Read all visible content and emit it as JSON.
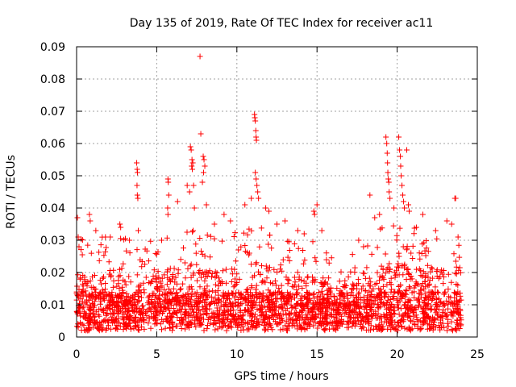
{
  "chart_data": {
    "type": "scatter",
    "title": "Day 135 of 2019, Rate Of TEC Index for receiver ac11",
    "xlabel": "GPS time / hours",
    "ylabel": "ROTI / TECUs",
    "xlim": [
      0,
      25
    ],
    "ylim": [
      0,
      0.09
    ],
    "xticks": [
      0,
      5,
      10,
      15,
      20,
      25
    ],
    "yticks": [
      0,
      0.01,
      0.02,
      0.03,
      0.04,
      0.05,
      0.06,
      0.07,
      0.08,
      0.09
    ],
    "xtick_labels": [
      "0",
      "5",
      "10",
      "15",
      "20",
      "25"
    ],
    "ytick_labels": [
      "0",
      "0.01",
      "0.02",
      "0.03",
      "0.04",
      "0.05",
      "0.06",
      "0.07",
      "0.08",
      "0.09"
    ],
    "grid": true,
    "marker": "+",
    "color": "#ff0000",
    "data_range_x": [
      0,
      24
    ],
    "series": [
      {
        "name": "ROTI",
        "baseline_envelope": {
          "x": [
            0,
            1,
            2,
            3,
            4,
            5,
            6,
            7,
            8,
            9,
            10,
            11,
            12,
            13,
            14,
            15,
            16,
            17,
            18,
            19,
            20,
            21,
            22,
            23,
            24
          ],
          "typical_max": [
            0.026,
            0.024,
            0.026,
            0.025,
            0.024,
            0.025,
            0.027,
            0.03,
            0.028,
            0.026,
            0.027,
            0.03,
            0.028,
            0.026,
            0.025,
            0.024,
            0.019,
            0.019,
            0.022,
            0.028,
            0.03,
            0.028,
            0.025,
            0.027,
            0.027
          ]
        },
        "outliers": [
          {
            "x": 0.05,
            "y": 0.037
          },
          {
            "x": 0.1,
            "y": 0.031
          },
          {
            "x": 0.15,
            "y": 0.028
          },
          {
            "x": 0.8,
            "y": 0.038
          },
          {
            "x": 0.85,
            "y": 0.036
          },
          {
            "x": 1.2,
            "y": 0.033
          },
          {
            "x": 1.8,
            "y": 0.031
          },
          {
            "x": 2.1,
            "y": 0.031
          },
          {
            "x": 2.7,
            "y": 0.035
          },
          {
            "x": 2.75,
            "y": 0.034
          },
          {
            "x": 3.3,
            "y": 0.03
          },
          {
            "x": 3.75,
            "y": 0.054
          },
          {
            "x": 3.78,
            "y": 0.052
          },
          {
            "x": 3.8,
            "y": 0.051
          },
          {
            "x": 3.77,
            "y": 0.047
          },
          {
            "x": 3.79,
            "y": 0.044
          },
          {
            "x": 3.82,
            "y": 0.043
          },
          {
            "x": 3.85,
            "y": 0.033
          },
          {
            "x": 5.7,
            "y": 0.049
          },
          {
            "x": 5.72,
            "y": 0.048
          },
          {
            "x": 5.75,
            "y": 0.044
          },
          {
            "x": 5.68,
            "y": 0.04
          },
          {
            "x": 5.7,
            "y": 0.038
          },
          {
            "x": 6.3,
            "y": 0.042
          },
          {
            "x": 6.9,
            "y": 0.047
          },
          {
            "x": 7.1,
            "y": 0.059
          },
          {
            "x": 7.15,
            "y": 0.058
          },
          {
            "x": 7.2,
            "y": 0.055
          },
          {
            "x": 7.25,
            "y": 0.054
          },
          {
            "x": 7.18,
            "y": 0.053
          },
          {
            "x": 7.22,
            "y": 0.052
          },
          {
            "x": 7.3,
            "y": 0.047
          },
          {
            "x": 7.05,
            "y": 0.045
          },
          {
            "x": 7.35,
            "y": 0.04
          },
          {
            "x": 7.7,
            "y": 0.087
          },
          {
            "x": 7.75,
            "y": 0.063
          },
          {
            "x": 7.9,
            "y": 0.056
          },
          {
            "x": 7.95,
            "y": 0.055
          },
          {
            "x": 8.0,
            "y": 0.053
          },
          {
            "x": 7.92,
            "y": 0.051
          },
          {
            "x": 7.85,
            "y": 0.048
          },
          {
            "x": 8.1,
            "y": 0.041
          },
          {
            "x": 8.6,
            "y": 0.035
          },
          {
            "x": 9.2,
            "y": 0.038
          },
          {
            "x": 9.6,
            "y": 0.036
          },
          {
            "x": 10.5,
            "y": 0.041
          },
          {
            "x": 10.9,
            "y": 0.043
          },
          {
            "x": 11.1,
            "y": 0.069
          },
          {
            "x": 11.12,
            "y": 0.068
          },
          {
            "x": 11.15,
            "y": 0.067
          },
          {
            "x": 11.18,
            "y": 0.064
          },
          {
            "x": 11.2,
            "y": 0.062
          },
          {
            "x": 11.22,
            "y": 0.061
          },
          {
            "x": 11.15,
            "y": 0.051
          },
          {
            "x": 11.2,
            "y": 0.049
          },
          {
            "x": 11.25,
            "y": 0.047
          },
          {
            "x": 11.3,
            "y": 0.045
          },
          {
            "x": 11.35,
            "y": 0.043
          },
          {
            "x": 11.8,
            "y": 0.04
          },
          {
            "x": 12.0,
            "y": 0.039
          },
          {
            "x": 12.5,
            "y": 0.035
          },
          {
            "x": 13.0,
            "y": 0.036
          },
          {
            "x": 13.8,
            "y": 0.033
          },
          {
            "x": 14.2,
            "y": 0.032
          },
          {
            "x": 14.8,
            "y": 0.039
          },
          {
            "x": 14.85,
            "y": 0.038
          },
          {
            "x": 15.0,
            "y": 0.041
          },
          {
            "x": 15.3,
            "y": 0.033
          },
          {
            "x": 17.6,
            "y": 0.03
          },
          {
            "x": 17.9,
            "y": 0.028
          },
          {
            "x": 18.3,
            "y": 0.044
          },
          {
            "x": 18.6,
            "y": 0.037
          },
          {
            "x": 18.9,
            "y": 0.038
          },
          {
            "x": 19.3,
            "y": 0.062
          },
          {
            "x": 19.35,
            "y": 0.06
          },
          {
            "x": 19.38,
            "y": 0.057
          },
          {
            "x": 19.4,
            "y": 0.054
          },
          {
            "x": 19.42,
            "y": 0.051
          },
          {
            "x": 19.45,
            "y": 0.049
          },
          {
            "x": 19.48,
            "y": 0.048
          },
          {
            "x": 19.5,
            "y": 0.045
          },
          {
            "x": 19.55,
            "y": 0.043
          },
          {
            "x": 19.8,
            "y": 0.04
          },
          {
            "x": 20.1,
            "y": 0.062
          },
          {
            "x": 20.15,
            "y": 0.058
          },
          {
            "x": 20.2,
            "y": 0.056
          },
          {
            "x": 20.22,
            "y": 0.053
          },
          {
            "x": 20.25,
            "y": 0.05
          },
          {
            "x": 20.3,
            "y": 0.047
          },
          {
            "x": 20.35,
            "y": 0.044
          },
          {
            "x": 20.4,
            "y": 0.042
          },
          {
            "x": 20.45,
            "y": 0.04
          },
          {
            "x": 20.6,
            "y": 0.058
          },
          {
            "x": 20.7,
            "y": 0.041
          },
          {
            "x": 20.75,
            "y": 0.039
          },
          {
            "x": 21.2,
            "y": 0.034
          },
          {
            "x": 21.6,
            "y": 0.038
          },
          {
            "x": 22.4,
            "y": 0.033
          },
          {
            "x": 23.1,
            "y": 0.036
          },
          {
            "x": 23.4,
            "y": 0.035
          },
          {
            "x": 23.6,
            "y": 0.043
          },
          {
            "x": 23.65,
            "y": 0.043
          },
          {
            "x": 23.8,
            "y": 0.031
          }
        ]
      }
    ]
  }
}
